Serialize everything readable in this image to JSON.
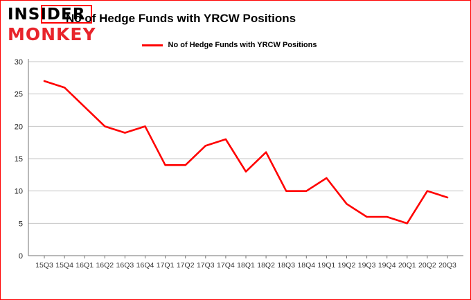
{
  "brand": {
    "line1": "INSIDER",
    "line2": "MONKEY"
  },
  "header": {
    "title": "No of Hedge Funds with YRCW Positions"
  },
  "legend": {
    "label": "No of Hedge Funds with YRCW Positions",
    "color": "#ff0000"
  },
  "colors": {
    "line": "#ff0000",
    "grid": "#c6c6c6",
    "axis": "#737373",
    "border": "#ff0000",
    "brand_red": "#e8242b"
  },
  "chart_data": {
    "type": "line",
    "title": "No of Hedge Funds with YRCW Positions",
    "xlabel": "",
    "ylabel": "",
    "categories": [
      "15Q3",
      "15Q4",
      "16Q1",
      "16Q2",
      "16Q3",
      "16Q4",
      "17Q1",
      "17Q2",
      "17Q3",
      "17Q4",
      "18Q1",
      "18Q2",
      "18Q3",
      "18Q4",
      "19Q1",
      "19Q2",
      "19Q3",
      "19Q4",
      "20Q1",
      "20Q2",
      "20Q3"
    ],
    "series": [
      {
        "name": "No of Hedge Funds with YRCW Positions",
        "color": "#ff0000",
        "values": [
          27,
          26,
          23,
          20,
          19,
          20,
          14,
          14,
          17,
          18,
          13,
          16,
          10,
          10,
          12,
          8,
          6,
          6,
          5,
          10,
          9
        ]
      }
    ],
    "ylim": [
      0,
      30
    ],
    "yticks": [
      0,
      5,
      10,
      15,
      20,
      25,
      30
    ],
    "grid": true,
    "legend_position": "top"
  }
}
